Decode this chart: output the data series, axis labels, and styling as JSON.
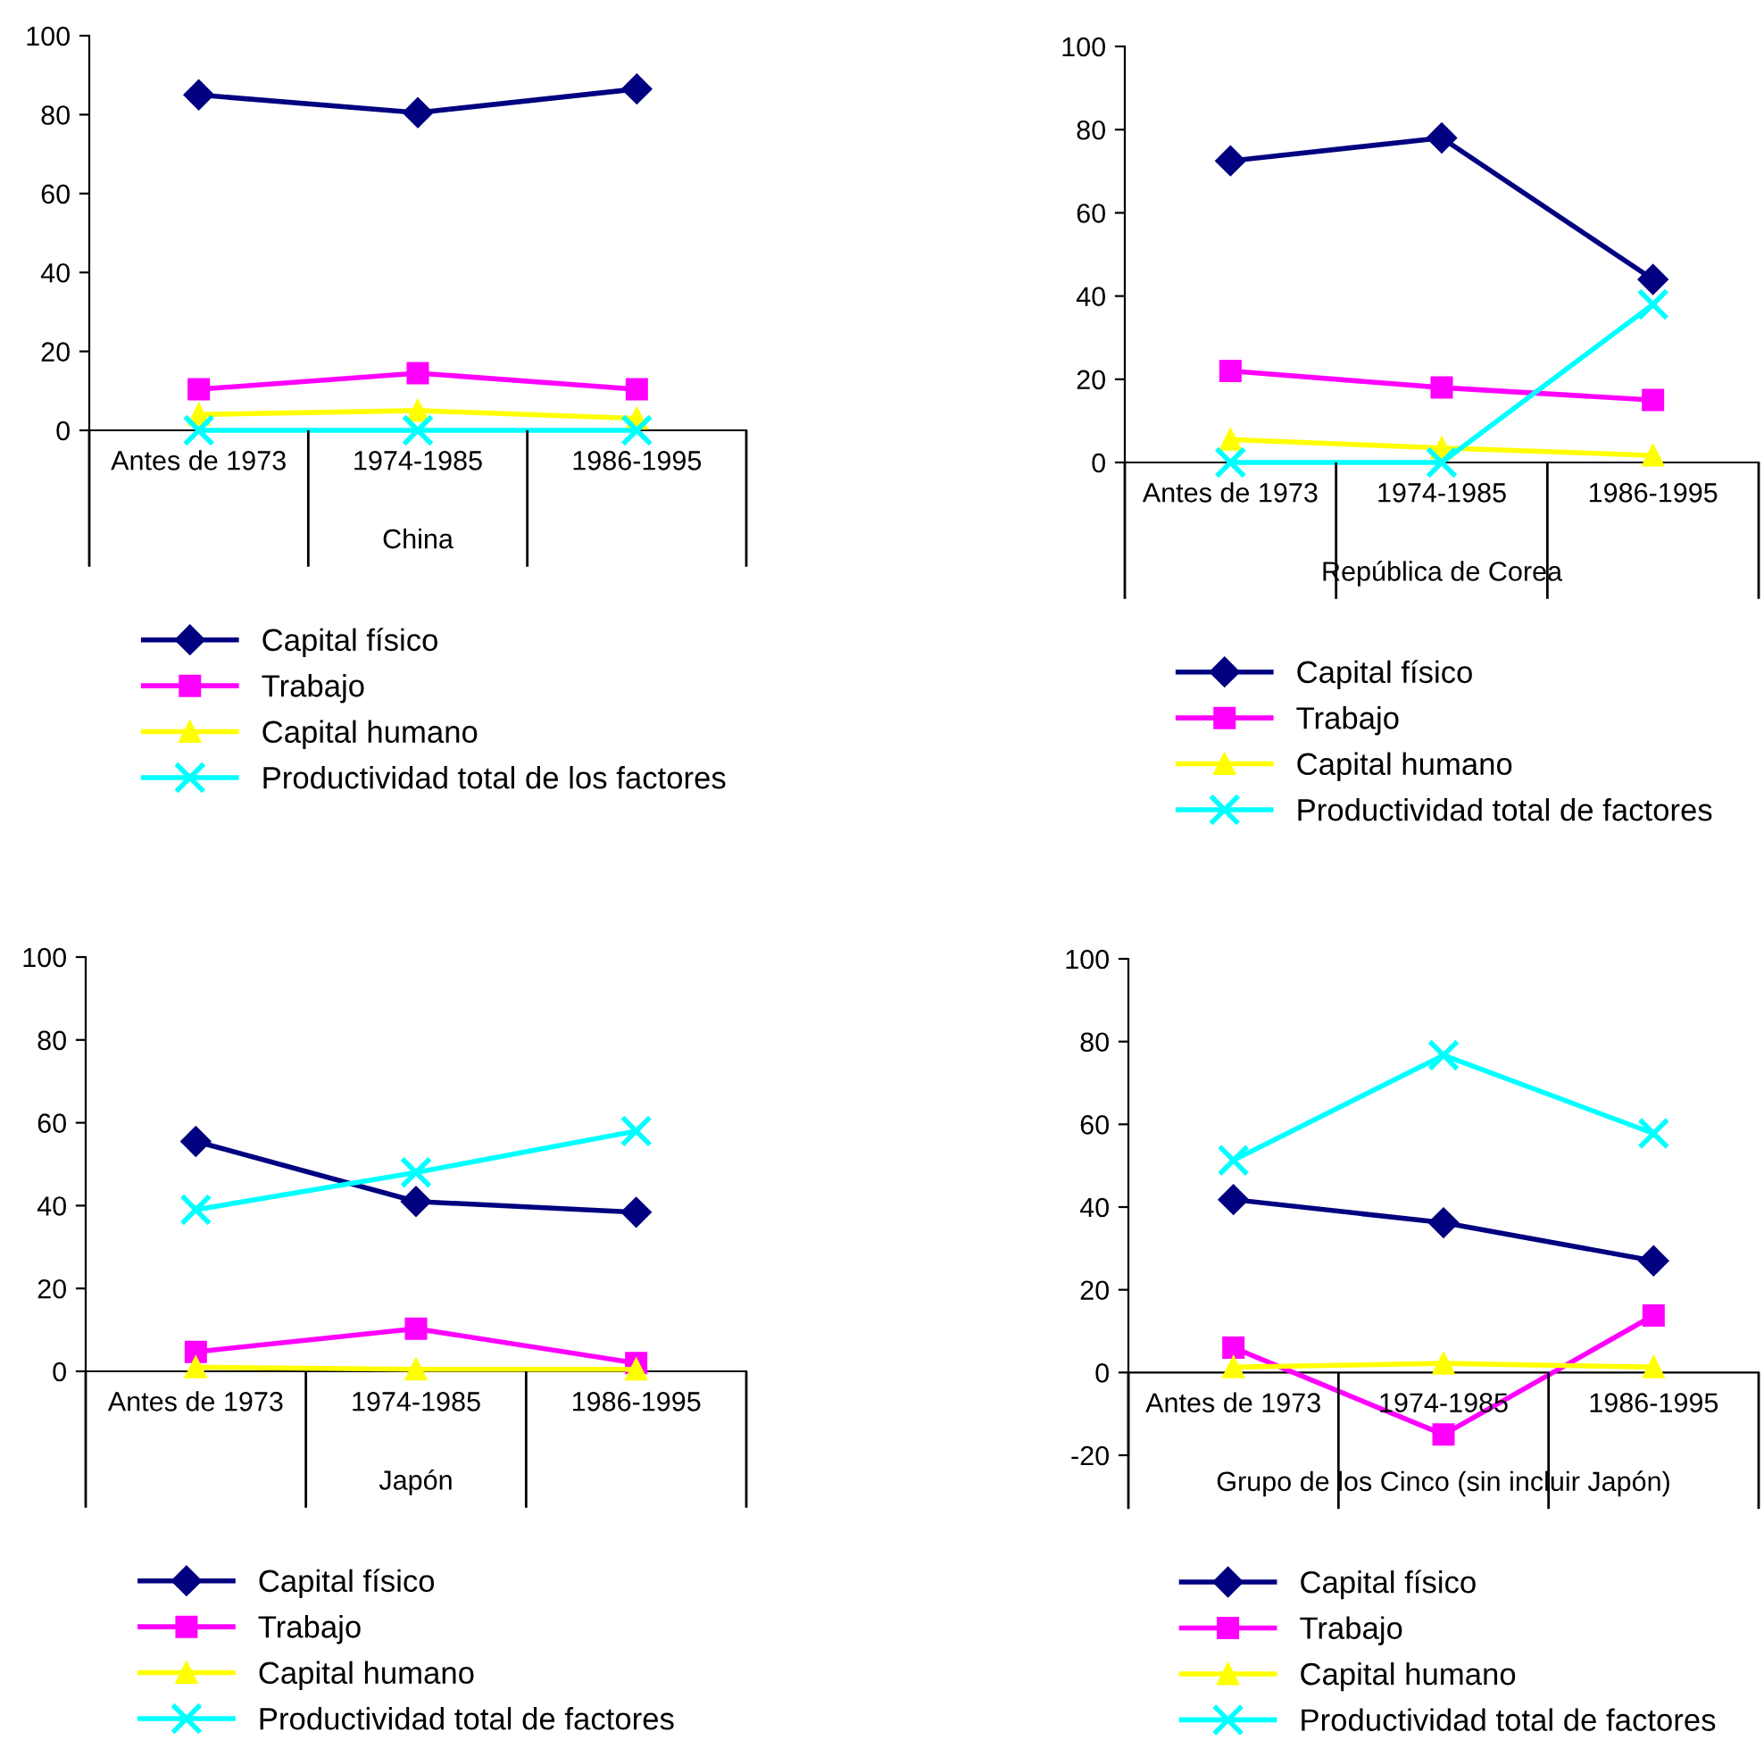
{
  "chart_data": [
    {
      "type": "line",
      "xlabel": "China",
      "categories": [
        "Antes de 1973",
        "1974-1985",
        "1986-1995"
      ],
      "ylim": [
        0,
        100
      ],
      "yticks": [
        0,
        20,
        40,
        60,
        80,
        100
      ],
      "grid": false,
      "legend": "bottom",
      "series": [
        {
          "name": "Capital físico",
          "color": "#000080",
          "marker": "diamond",
          "values": [
            85,
            80.5,
            86.5
          ]
        },
        {
          "name": "Trabajo",
          "color": "#ff00ff",
          "marker": "square",
          "values": [
            10.4,
            14.5,
            10.4
          ]
        },
        {
          "name": "Capital humano",
          "color": "#ffff00",
          "marker": "triangle",
          "values": [
            4,
            5,
            3
          ]
        },
        {
          "name": "Productividad total de los factores",
          "color": "#00ffff",
          "marker": "cross",
          "values": [
            0,
            0,
            0
          ]
        }
      ]
    },
    {
      "type": "line",
      "xlabel": "República de Corea",
      "categories": [
        "Antes de 1973",
        "1974-1985",
        "1986-1995"
      ],
      "ylim": [
        0,
        100
      ],
      "yticks": [
        0,
        20,
        40,
        60,
        80,
        100
      ],
      "grid": false,
      "legend": "bottom",
      "series": [
        {
          "name": "Capital físico",
          "color": "#000080",
          "marker": "diamond",
          "values": [
            72.5,
            78,
            44
          ]
        },
        {
          "name": "Trabajo",
          "color": "#ff00ff",
          "marker": "square",
          "values": [
            22,
            18,
            15
          ]
        },
        {
          "name": "Capital humano",
          "color": "#ffff00",
          "marker": "triangle",
          "values": [
            5.5,
            3.5,
            1.7
          ]
        },
        {
          "name": "Productividad total de factores",
          "color": "#00ffff",
          "marker": "cross",
          "values": [
            0,
            0,
            38
          ]
        }
      ]
    },
    {
      "type": "line",
      "xlabel": "Japón",
      "categories": [
        "Antes de 1973",
        "1974-1985",
        "1986-1995"
      ],
      "ylim": [
        0,
        100
      ],
      "yticks": [
        0,
        20,
        40,
        60,
        80,
        100
      ],
      "grid": false,
      "legend": "bottom",
      "series": [
        {
          "name": "Capital físico",
          "color": "#000080",
          "marker": "diamond",
          "values": [
            55.5,
            41,
            38.4
          ]
        },
        {
          "name": "Trabajo",
          "color": "#ff00ff",
          "marker": "square",
          "values": [
            4.7,
            10.3,
            2
          ]
        },
        {
          "name": "Capital humano",
          "color": "#ffff00",
          "marker": "triangle",
          "values": [
            1,
            0.5,
            0.5
          ]
        },
        {
          "name": "Productividad total de factores",
          "color": "#00ffff",
          "marker": "cross",
          "values": [
            39,
            48,
            58
          ]
        }
      ]
    },
    {
      "type": "line",
      "xlabel": "Grupo de los Cinco (sin incluir Japón)",
      "categories": [
        "Antes de 1973",
        "1974-1985",
        "1986-1995"
      ],
      "ylim": [
        -20,
        100
      ],
      "yticks": [
        -20,
        0,
        20,
        40,
        60,
        80,
        100
      ],
      "grid": false,
      "legend": "bottom",
      "series": [
        {
          "name": "Capital físico",
          "color": "#000080",
          "marker": "diamond",
          "values": [
            41.8,
            36.2,
            27
          ]
        },
        {
          "name": "Trabajo",
          "color": "#ff00ff",
          "marker": "square",
          "values": [
            6,
            -15,
            13.8
          ]
        },
        {
          "name": "Capital humano",
          "color": "#ffff00",
          "marker": "triangle",
          "values": [
            1.3,
            2.2,
            1.3
          ]
        },
        {
          "name": "Productividad total de factores",
          "color": "#00ffff",
          "marker": "cross",
          "values": [
            51.3,
            76.7,
            57.8
          ]
        }
      ]
    }
  ]
}
